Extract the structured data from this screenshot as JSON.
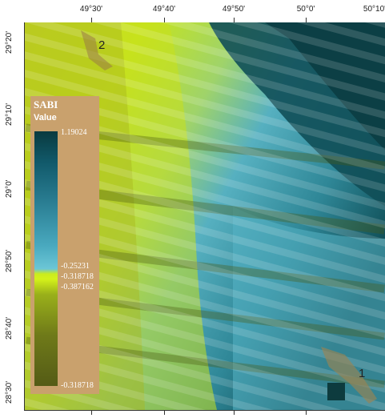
{
  "map": {
    "top_labels": [
      "49°30'",
      "49°40'",
      "49°50'",
      "50°0'",
      "50°10'"
    ],
    "left_labels": [
      "29°20'",
      "29°10'",
      "29°0'",
      "28°50'",
      "28°40'",
      "28°30'"
    ],
    "sites": [
      "2",
      "1"
    ]
  },
  "legend": {
    "title": "SABI",
    "subtitle": "Value",
    "values": [
      "1.19024",
      "-0.25231",
      "-0.318718",
      "-0.387162",
      "-0.318718"
    ]
  },
  "colors": {
    "deep_teal": "#0c3f45",
    "cyan": "#5fb7c8",
    "yellow_green": "#c8e21c",
    "olive": "#7d8e1e",
    "legend_bg": "#c9a16d"
  }
}
